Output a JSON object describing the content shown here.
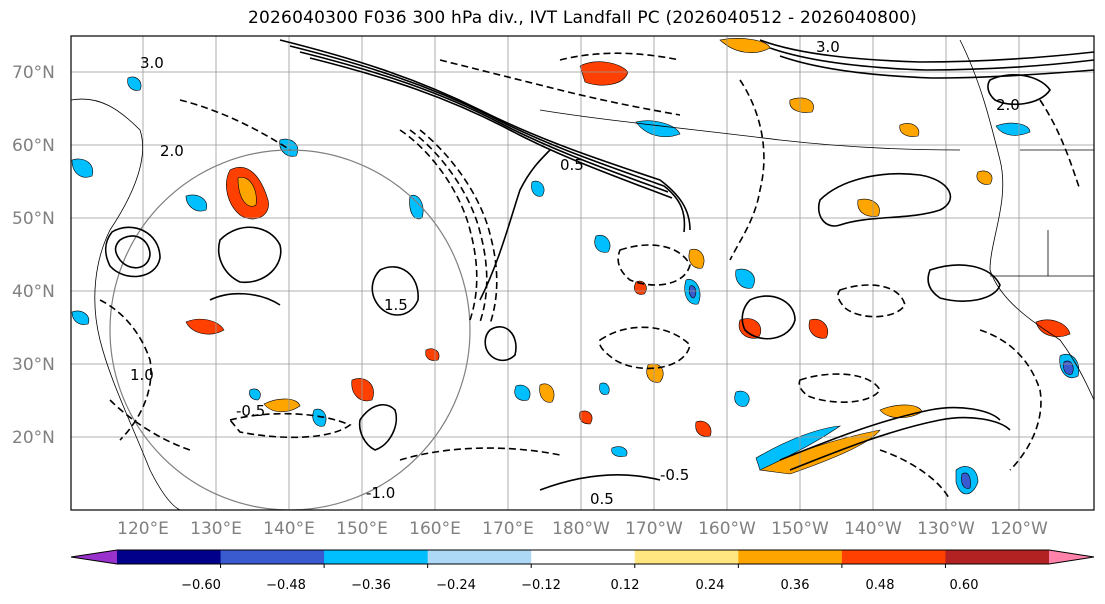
{
  "title": "2026040300 F036 300 hPa div., IVT Landfall PC (2026040512 - 2026040800)",
  "lat_labels": [
    "70°N",
    "60°N",
    "50°N",
    "40°N",
    "30°N",
    "20°N"
  ],
  "lon_labels": [
    "120°E",
    "130°E",
    "140°E",
    "150°E",
    "160°E",
    "170°E",
    "180°W",
    "170°W",
    "160°W",
    "150°W",
    "140°W",
    "130°W",
    "120°W"
  ],
  "contour_labels": [
    "3.0",
    "2.0",
    "1.5",
    "1.0",
    "0.5",
    "-0.5",
    "-1.0",
    "0.5",
    "-0.5",
    "3.0",
    "2.0"
  ],
  "colorbar": {
    "ticks": [
      "−0.60",
      "−0.48",
      "−0.36",
      "−0.24",
      "−0.12",
      "0.12",
      "0.24",
      "0.36",
      "0.48",
      "0.60"
    ],
    "colors": [
      "#9932CC",
      "#00008B",
      "#3A5BD0",
      "#00BFFF",
      "#ADD8F6",
      "#FFFFFF",
      "#FFE680",
      "#FFA500",
      "#FF4000",
      "#B22222",
      "#FF82AB"
    ]
  }
}
